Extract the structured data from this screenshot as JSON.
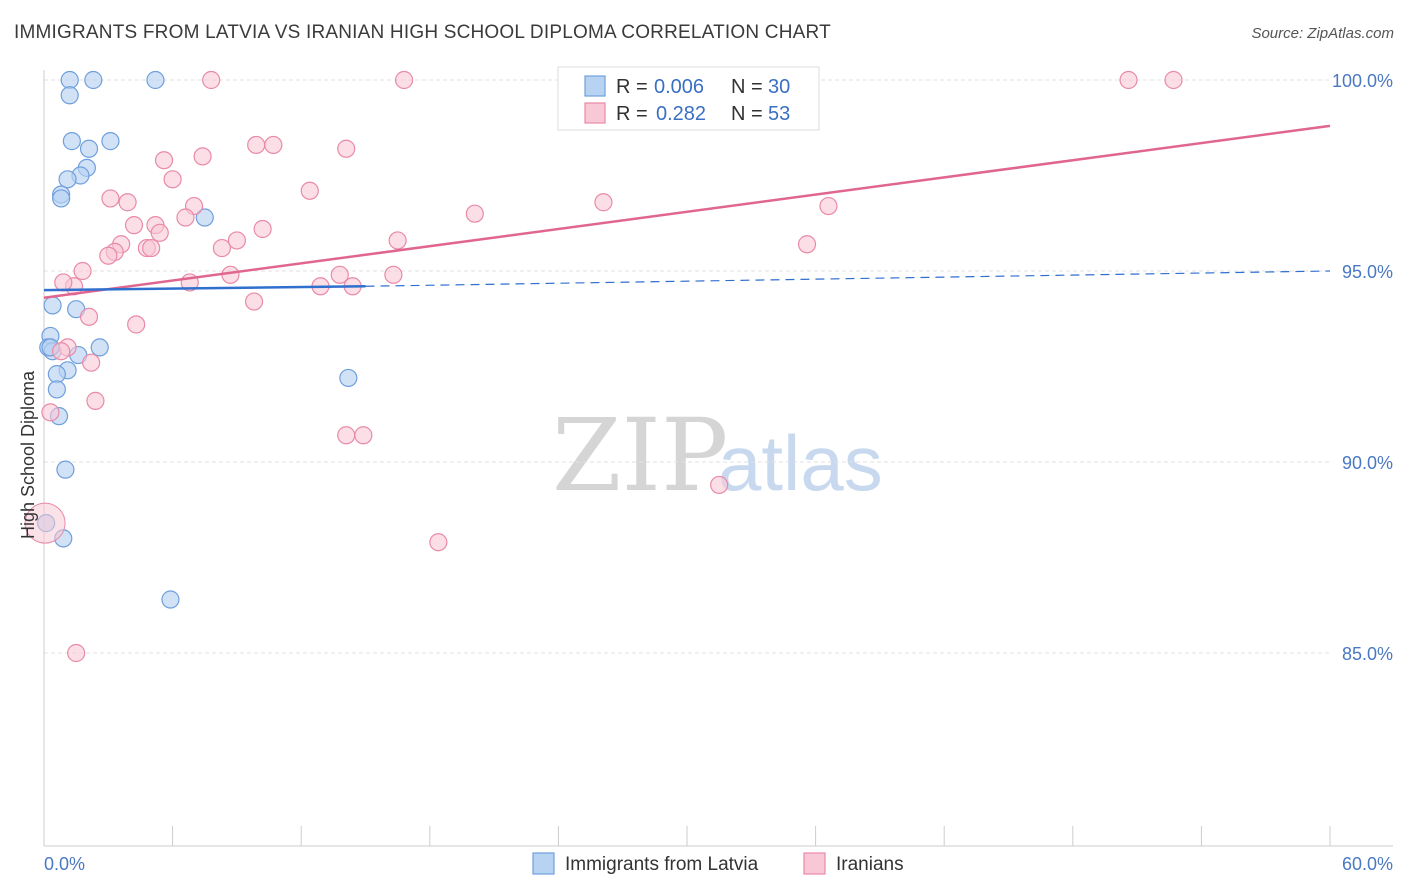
{
  "chart_data": {
    "type": "scatter",
    "title": "IMMIGRANTS FROM LATVIA VS IRANIAN HIGH SCHOOL DIPLOMA CORRELATION CHART",
    "source": "Source: ZipAtlas.com",
    "ylabel": "High School Diploma",
    "xlim": [
      0,
      60
    ],
    "ylim": [
      80.5,
      101.0
    ],
    "ytick_values": [
      85.0,
      90.0,
      95.0,
      100.0
    ],
    "ytick_labels": [
      "85.0%",
      "90.0%",
      "95.0%",
      "100.0%"
    ],
    "xtick_labels": [
      "0.0%",
      "60.0%"
    ],
    "grid": true,
    "legend_position": "top-center",
    "watermark": {
      "zip": "ZIP",
      "atlas": "atlas"
    },
    "legend": {
      "rows": [
        {
          "r_label": "R =",
          "r_value": "0.006",
          "n_label": "N =",
          "n_value": "30"
        },
        {
          "r_label": "R =",
          "r_value": "0.282",
          "n_label": "N =",
          "n_value": "53"
        }
      ]
    },
    "colors": {
      "latvia_fill": "#b8d2f2",
      "latvia_stroke": "#6f9fdc",
      "latvia_line": "#2f6fce",
      "iranian_fill": "#f8c8d6",
      "iranian_stroke": "#e98aa8",
      "iranian_line": "#e06690"
    },
    "series": [
      {
        "name": "Immigrants from Latvia",
        "trend": {
          "x": [
            0,
            15
          ],
          "y": [
            94.5,
            94.6
          ],
          "dashed_to_x": 60,
          "dashed_to_y": 95.0
        },
        "points": [
          [
            1.2,
            100.0
          ],
          [
            2.3,
            100.0
          ],
          [
            5.2,
            100.0
          ],
          [
            1.2,
            99.6
          ],
          [
            1.3,
            98.4
          ],
          [
            3.1,
            98.4
          ],
          [
            2.1,
            98.2
          ],
          [
            2.0,
            97.7
          ],
          [
            1.7,
            97.5
          ],
          [
            1.1,
            97.4
          ],
          [
            0.8,
            97.0
          ],
          [
            0.8,
            96.9
          ],
          [
            7.5,
            96.4
          ],
          [
            0.4,
            94.1
          ],
          [
            1.5,
            94.0
          ],
          [
            0.3,
            93.3
          ],
          [
            0.2,
            93.0
          ],
          [
            0.4,
            92.9
          ],
          [
            2.6,
            93.0
          ],
          [
            1.6,
            92.8
          ],
          [
            1.1,
            92.4
          ],
          [
            0.6,
            92.3
          ],
          [
            14.2,
            92.2
          ],
          [
            0.6,
            91.9
          ],
          [
            0.7,
            91.2
          ],
          [
            1.0,
            89.8
          ],
          [
            0.1,
            88.4
          ],
          [
            0.9,
            88.0
          ],
          [
            5.9,
            86.4
          ],
          [
            0.3,
            93.0
          ]
        ]
      },
      {
        "name": "Iranians",
        "trend": {
          "x": [
            0,
            60
          ],
          "y": [
            94.3,
            98.8
          ]
        },
        "points": [
          [
            7.8,
            100.0
          ],
          [
            16.8,
            100.0
          ],
          [
            50.6,
            100.0
          ],
          [
            52.7,
            100.0
          ],
          [
            9.9,
            98.3
          ],
          [
            10.7,
            98.3
          ],
          [
            14.1,
            98.2
          ],
          [
            7.4,
            98.0
          ],
          [
            5.6,
            97.9
          ],
          [
            6.0,
            97.4
          ],
          [
            12.4,
            97.1
          ],
          [
            3.1,
            96.9
          ],
          [
            3.9,
            96.8
          ],
          [
            7.0,
            96.7
          ],
          [
            26.1,
            96.8
          ],
          [
            36.6,
            96.7
          ],
          [
            20.1,
            96.5
          ],
          [
            6.6,
            96.4
          ],
          [
            5.2,
            96.2
          ],
          [
            4.2,
            96.2
          ],
          [
            10.2,
            96.1
          ],
          [
            5.4,
            96.0
          ],
          [
            16.5,
            95.8
          ],
          [
            9.0,
            95.8
          ],
          [
            3.6,
            95.7
          ],
          [
            35.6,
            95.7
          ],
          [
            4.8,
            95.6
          ],
          [
            8.3,
            95.6
          ],
          [
            5.0,
            95.6
          ],
          [
            3.3,
            95.5
          ],
          [
            3.0,
            95.4
          ],
          [
            1.8,
            95.0
          ],
          [
            8.7,
            94.9
          ],
          [
            13.8,
            94.9
          ],
          [
            16.3,
            94.9
          ],
          [
            6.8,
            94.7
          ],
          [
            12.9,
            94.6
          ],
          [
            14.4,
            94.6
          ],
          [
            1.4,
            94.6
          ],
          [
            0.9,
            94.7
          ],
          [
            9.8,
            94.2
          ],
          [
            2.1,
            93.8
          ],
          [
            4.3,
            93.6
          ],
          [
            1.1,
            93.0
          ],
          [
            0.8,
            92.9
          ],
          [
            2.2,
            92.6
          ],
          [
            2.4,
            91.6
          ],
          [
            0.3,
            91.3
          ],
          [
            14.1,
            90.7
          ],
          [
            14.9,
            90.7
          ],
          [
            31.5,
            89.4
          ],
          [
            18.4,
            87.9
          ],
          [
            1.5,
            85.0
          ]
        ]
      }
    ],
    "big_point": {
      "x": 0.05,
      "y": 88.4
    }
  }
}
